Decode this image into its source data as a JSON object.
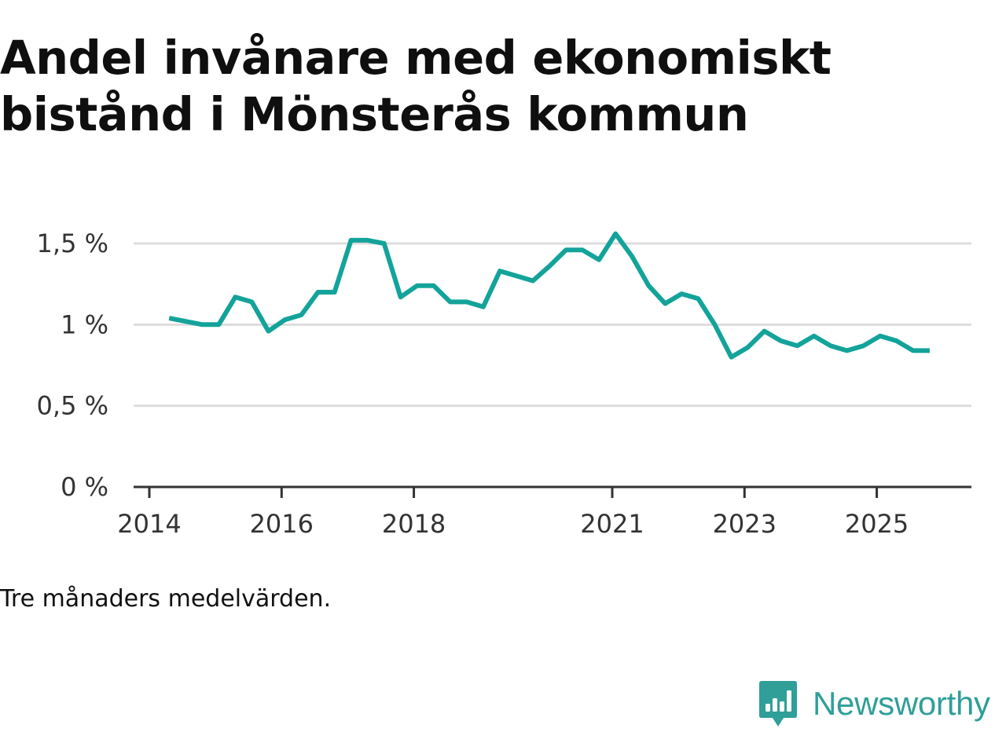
{
  "title_lines": [
    "Andel invånare med ekonomiskt",
    "bistånd i Mönsterås kommun"
  ],
  "note": "Tre månaders medelvärden.",
  "brand": {
    "name": "Newsworthy",
    "icon": "newsworthy-logo-icon",
    "color": "#2f9f98"
  },
  "colors": {
    "line": "#13a39a",
    "grid": "#dddddd",
    "axis": "#333333"
  },
  "chart_data": {
    "type": "line",
    "title": "Andel invånare med ekonomiskt bistånd i Mönsterås kommun",
    "xlabel": "",
    "ylabel": "",
    "ylim": [
      0,
      1.5
    ],
    "xlim": [
      2014,
      2026.4
    ],
    "grid": true,
    "y_ticks": [
      0,
      0.5,
      1,
      1.5
    ],
    "y_tick_labels": [
      "0 %",
      "0,5 %",
      "1 %",
      "1,5 %"
    ],
    "x_ticks": [
      2014,
      2016,
      2018,
      2021,
      2023,
      2025
    ],
    "x_tick_labels": [
      "2014",
      "2016",
      "2018",
      "2021",
      "2023",
      "2025"
    ],
    "series": [
      {
        "name": "Andel invånare med ekonomiskt bistånd",
        "x": [
          2014.3,
          2014.55,
          2014.8,
          2015.05,
          2015.3,
          2015.55,
          2015.8,
          2016.05,
          2016.3,
          2016.55,
          2016.8,
          2017.05,
          2017.3,
          2017.55,
          2017.8,
          2018.05,
          2018.3,
          2018.55,
          2018.8,
          2019.05,
          2019.3,
          2019.55,
          2019.8,
          2020.05,
          2020.3,
          2020.55,
          2020.8,
          2021.05,
          2021.3,
          2021.55,
          2021.8,
          2022.05,
          2022.3,
          2022.55,
          2022.8,
          2023.05,
          2023.3,
          2023.55,
          2023.8,
          2024.05,
          2024.3,
          2024.55,
          2024.8,
          2025.05,
          2025.3,
          2025.55,
          2025.8
        ],
        "values": [
          1.04,
          1.02,
          1.0,
          1.0,
          1.17,
          1.14,
          0.96,
          1.03,
          1.06,
          1.2,
          1.2,
          1.52,
          1.52,
          1.5,
          1.17,
          1.24,
          1.24,
          1.14,
          1.14,
          1.11,
          1.33,
          1.3,
          1.27,
          1.36,
          1.46,
          1.46,
          1.4,
          1.56,
          1.42,
          1.24,
          1.13,
          1.19,
          1.16,
          1.0,
          0.8,
          0.86,
          0.96,
          0.9,
          0.87,
          0.93,
          0.87,
          0.84,
          0.87,
          0.93,
          0.9,
          0.84,
          0.84
        ]
      }
    ]
  }
}
